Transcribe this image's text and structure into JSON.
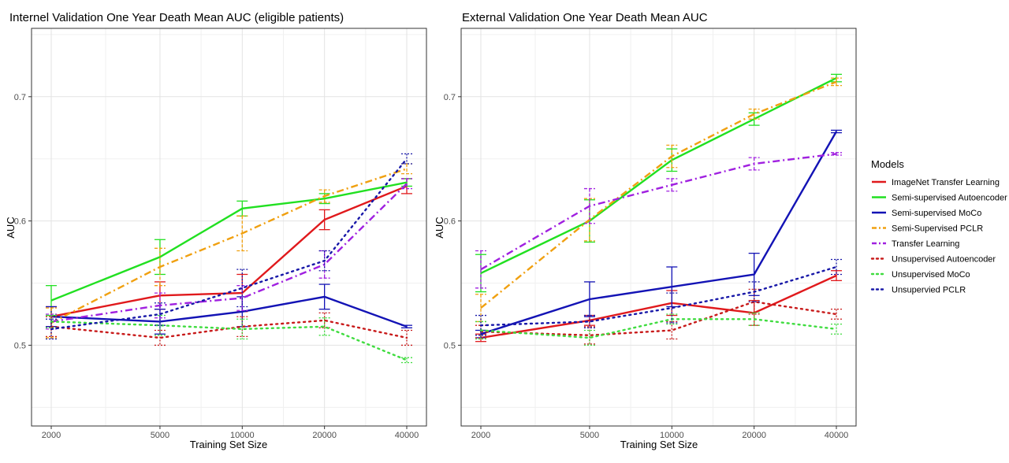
{
  "chart_data": [
    {
      "type": "line",
      "title": "Internel Validation One Year Death Mean AUC (eligible patients)",
      "xlabel": "Training Set Size",
      "ylabel": "AUC",
      "x": [
        2000,
        5000,
        10000,
        20000,
        40000
      ],
      "x_tick_labels": [
        "2000",
        "5000",
        "10000",
        "20000",
        "40000"
      ],
      "y_ticks": [
        0.5,
        0.6,
        0.7
      ],
      "y_tick_labels": [
        "0.5",
        "0.6",
        "0.7"
      ],
      "ylim": [
        0.435,
        0.755
      ],
      "series": [
        {
          "name": "ImageNet Transfer Learning",
          "values": [
            0.523,
            0.54,
            0.542,
            0.601,
            0.628
          ],
          "err": [
            0.008,
            0.011,
            0.015,
            0.008,
            0.006
          ]
        },
        {
          "name": "Semi-supervised Autoencoder",
          "values": [
            0.536,
            0.571,
            0.61,
            0.618,
            0.631
          ],
          "err": [
            0.012,
            0.014,
            0.006,
            0.004,
            0.003
          ]
        },
        {
          "name": "Semi-supervised MoCo",
          "values": [
            0.523,
            0.519,
            0.527,
            0.539,
            0.515
          ],
          "err": [
            0.008,
            0.01,
            0.012,
            0.01,
            0.001
          ]
        },
        {
          "name": "Semi-Supervised PCLR",
          "values": [
            0.518,
            0.563,
            0.59,
            0.62,
            0.642
          ],
          "err": [
            0.012,
            0.015,
            0.014,
            0.005,
            0.004
          ]
        },
        {
          "name": "Transfer Learning",
          "values": [
            0.519,
            0.532,
            0.538,
            0.565,
            0.63
          ],
          "err": [
            0.006,
            0.01,
            0.01,
            0.011,
            0.004
          ]
        },
        {
          "name": "Unsupervised Autoencoder",
          "values": [
            0.515,
            0.506,
            0.515,
            0.52,
            0.506
          ],
          "err": [
            0.008,
            0.006,
            0.008,
            0.006,
            0.006
          ]
        },
        {
          "name": "Unsupervised MoCo",
          "values": [
            0.519,
            0.516,
            0.513,
            0.515,
            0.488
          ],
          "err": [
            0.005,
            0.008,
            0.008,
            0.007,
            0.002
          ]
        },
        {
          "name": "Unsupervied PCLR",
          "values": [
            0.513,
            0.525,
            0.546,
            0.568,
            0.65
          ],
          "err": [
            0.008,
            0.009,
            0.015,
            0.008,
            0.004
          ]
        }
      ]
    },
    {
      "type": "line",
      "title": "External Validation One Year Death Mean AUC",
      "xlabel": "Training Set Size",
      "ylabel": "AUC",
      "x": [
        2000,
        5000,
        10000,
        20000,
        40000
      ],
      "x_tick_labels": [
        "2000",
        "5000",
        "10000",
        "20000",
        "40000"
      ],
      "y_ticks": [
        0.5,
        0.6,
        0.7
      ],
      "y_tick_labels": [
        "0.5",
        "0.6",
        "0.7"
      ],
      "ylim": [
        0.435,
        0.755
      ],
      "series": [
        {
          "name": "ImageNet Transfer Learning",
          "values": [
            0.506,
            0.52,
            0.534,
            0.526,
            0.556
          ],
          "err": [
            0.003,
            0.004,
            0.01,
            0.01,
            0.004
          ]
        },
        {
          "name": "Semi-supervised Autoencoder",
          "values": [
            0.558,
            0.6,
            0.649,
            0.682,
            0.715
          ],
          "err": [
            0.015,
            0.017,
            0.009,
            0.005,
            0.003
          ]
        },
        {
          "name": "Semi-supervised MoCo",
          "values": [
            0.509,
            0.537,
            0.547,
            0.557,
            0.672
          ],
          "err": [
            0.003,
            0.014,
            0.016,
            0.017,
            0.001
          ]
        },
        {
          "name": "Semi-Supervised PCLR",
          "values": [
            0.53,
            0.601,
            0.652,
            0.686,
            0.712
          ],
          "err": [
            0.011,
            0.017,
            0.009,
            0.004,
            0.003
          ]
        },
        {
          "name": "Transfer Learning",
          "values": [
            0.561,
            0.612,
            0.629,
            0.646,
            0.654
          ],
          "err": [
            0.015,
            0.014,
            0.005,
            0.005,
            0.001
          ]
        },
        {
          "name": "Unsupervised Autoencoder",
          "values": [
            0.511,
            0.508,
            0.512,
            0.535,
            0.525
          ],
          "err": [
            0.005,
            0.007,
            0.007,
            0.01,
            0.004
          ]
        },
        {
          "name": "Unsupervised MoCo",
          "values": [
            0.512,
            0.506,
            0.521,
            0.521,
            0.513
          ],
          "err": [
            0.007,
            0.006,
            0.004,
            0.005,
            0.004
          ]
        },
        {
          "name": "Unsupervied PCLR",
          "values": [
            0.516,
            0.519,
            0.53,
            0.543,
            0.563
          ],
          "err": [
            0.008,
            0.005,
            0.012,
            0.008,
            0.006
          ]
        }
      ]
    }
  ],
  "legend": {
    "title": "Models",
    "items": [
      {
        "name": "ImageNet Transfer Learning",
        "color": "#e0191c",
        "dash": "solid"
      },
      {
        "name": "Semi-supervised Autoencoder",
        "color": "#21e021",
        "dash": "solid"
      },
      {
        "name": "Semi-supervised MoCo",
        "color": "#1313b5",
        "dash": "solid"
      },
      {
        "name": "Semi-Supervised PCLR",
        "color": "#f0a010",
        "dash": "dashdot"
      },
      {
        "name": "Transfer Learning",
        "color": "#a020e0",
        "dash": "dashdot"
      },
      {
        "name": "Unsupervised Autoencoder",
        "color": "#c81a1a",
        "dash": "dot"
      },
      {
        "name": "Unsupervised MoCo",
        "color": "#3fdc3f",
        "dash": "dot"
      },
      {
        "name": "Unsupervied PCLR",
        "color": "#1818a8",
        "dash": "dot"
      }
    ]
  }
}
